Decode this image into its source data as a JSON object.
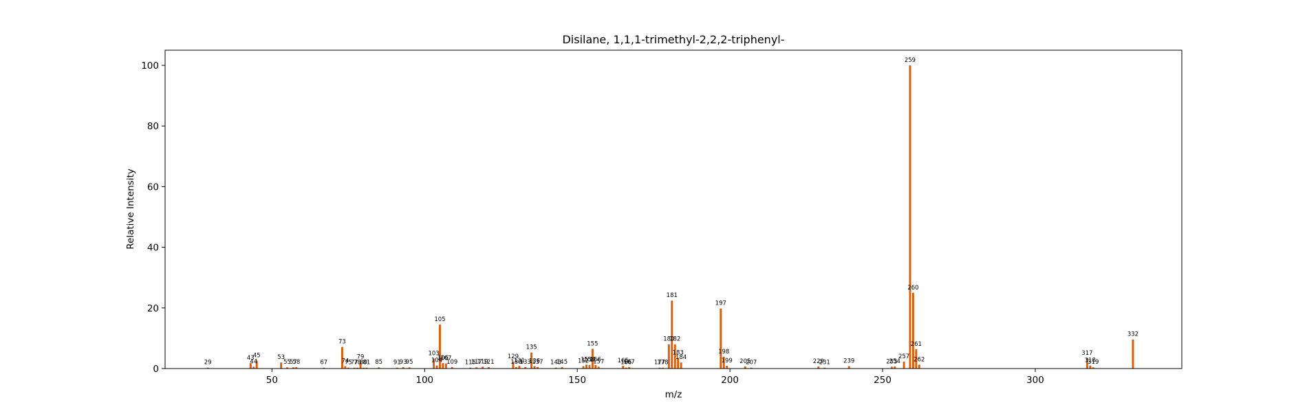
{
  "chart_data": {
    "type": "bar",
    "title": "Disilane, 1,1,1-trimethyl-2,2,2-triphenyl-",
    "xlabel": "m/z",
    "ylabel": "Relative Intensity",
    "xlim": [
      15,
      348
    ],
    "ylim": [
      0,
      105
    ],
    "xticks": [
      50,
      100,
      150,
      200,
      250,
      300
    ],
    "yticks": [
      0,
      20,
      40,
      60,
      80,
      100
    ],
    "grid": false,
    "legend": "none",
    "bar_color": "#d95f0e",
    "peaks": [
      {
        "x": 29,
        "y": 0.3,
        "label": "29"
      },
      {
        "x": 43,
        "y": 1.8,
        "label": "43"
      },
      {
        "x": 44,
        "y": 0.6,
        "label": "44"
      },
      {
        "x": 45,
        "y": 2.6,
        "label": "45"
      },
      {
        "x": 53,
        "y": 2.0,
        "label": "53"
      },
      {
        "x": 55,
        "y": 0.4,
        "label": "55"
      },
      {
        "x": 57,
        "y": 0.4,
        "label": "57"
      },
      {
        "x": 58,
        "y": 0.5,
        "label": "58"
      },
      {
        "x": 67,
        "y": 0.3,
        "label": "67"
      },
      {
        "x": 73,
        "y": 7.1,
        "label": "73"
      },
      {
        "x": 74,
        "y": 0.8,
        "label": "74"
      },
      {
        "x": 75,
        "y": 0.3,
        "label": "75"
      },
      {
        "x": 77,
        "y": 0.3,
        "label": "77"
      },
      {
        "x": 78,
        "y": 0.3,
        "label": "78"
      },
      {
        "x": 79,
        "y": 2.2,
        "label": "79"
      },
      {
        "x": 80,
        "y": 0.3,
        "label": "80"
      },
      {
        "x": 81,
        "y": 0.3,
        "label": "81"
      },
      {
        "x": 85,
        "y": 0.4,
        "label": "85"
      },
      {
        "x": 91,
        "y": 0.3,
        "label": "91"
      },
      {
        "x": 93,
        "y": 0.5,
        "label": "93"
      },
      {
        "x": 95,
        "y": 0.4,
        "label": "95"
      },
      {
        "x": 103,
        "y": 3.3,
        "label": "103"
      },
      {
        "x": 104,
        "y": 1.0,
        "label": "104"
      },
      {
        "x": 105,
        "y": 14.5,
        "label": "105"
      },
      {
        "x": 106,
        "y": 1.8,
        "label": "106"
      },
      {
        "x": 107,
        "y": 1.7,
        "label": "107"
      },
      {
        "x": 109,
        "y": 0.5,
        "label": "109"
      },
      {
        "x": 115,
        "y": 0.3,
        "label": "115"
      },
      {
        "x": 117,
        "y": 0.4,
        "label": "117"
      },
      {
        "x": 119,
        "y": 0.6,
        "label": "119"
      },
      {
        "x": 121,
        "y": 0.5,
        "label": "121"
      },
      {
        "x": 129,
        "y": 2.3,
        "label": "129"
      },
      {
        "x": 130,
        "y": 0.5,
        "label": "130"
      },
      {
        "x": 131,
        "y": 0.9,
        "label": "131"
      },
      {
        "x": 133,
        "y": 0.5,
        "label": "133"
      },
      {
        "x": 135,
        "y": 5.3,
        "label": "135"
      },
      {
        "x": 136,
        "y": 0.8,
        "label": "136"
      },
      {
        "x": 137,
        "y": 0.5,
        "label": "137"
      },
      {
        "x": 143,
        "y": 0.3,
        "label": "143"
      },
      {
        "x": 145,
        "y": 0.5,
        "label": "145"
      },
      {
        "x": 152,
        "y": 0.8,
        "label": "152"
      },
      {
        "x": 153,
        "y": 1.3,
        "label": "153"
      },
      {
        "x": 154,
        "y": 1.2,
        "label": "154"
      },
      {
        "x": 155,
        "y": 6.5,
        "label": "155"
      },
      {
        "x": 156,
        "y": 1.2,
        "label": "156"
      },
      {
        "x": 157,
        "y": 0.6,
        "label": "157"
      },
      {
        "x": 165,
        "y": 0.9,
        "label": "165"
      },
      {
        "x": 166,
        "y": 0.3,
        "label": "166"
      },
      {
        "x": 167,
        "y": 0.5,
        "label": "167"
      },
      {
        "x": 177,
        "y": 0.3,
        "label": "177"
      },
      {
        "x": 178,
        "y": 0.3,
        "label": "178"
      },
      {
        "x": 180,
        "y": 8.0,
        "label": "180"
      },
      {
        "x": 181,
        "y": 22.4,
        "label": "181"
      },
      {
        "x": 182,
        "y": 8.0,
        "label": "182"
      },
      {
        "x": 183,
        "y": 3.5,
        "label": "183"
      },
      {
        "x": 184,
        "y": 2.0,
        "label": "184"
      },
      {
        "x": 197,
        "y": 19.8,
        "label": "197"
      },
      {
        "x": 198,
        "y": 3.9,
        "label": "198"
      },
      {
        "x": 199,
        "y": 0.9,
        "label": "199"
      },
      {
        "x": 205,
        "y": 0.7,
        "label": "205"
      },
      {
        "x": 207,
        "y": 0.3,
        "label": "207"
      },
      {
        "x": 229,
        "y": 0.7,
        "label": "229"
      },
      {
        "x": 231,
        "y": 0.3,
        "label": "231"
      },
      {
        "x": 239,
        "y": 0.8,
        "label": "239"
      },
      {
        "x": 253,
        "y": 0.6,
        "label": "253"
      },
      {
        "x": 254,
        "y": 0.7,
        "label": "254"
      },
      {
        "x": 257,
        "y": 2.3,
        "label": "257"
      },
      {
        "x": 259,
        "y": 100.0,
        "label": "259"
      },
      {
        "x": 260,
        "y": 25.0,
        "label": "260"
      },
      {
        "x": 261,
        "y": 6.4,
        "label": "261"
      },
      {
        "x": 262,
        "y": 1.3,
        "label": "262"
      },
      {
        "x": 317,
        "y": 3.4,
        "label": "317"
      },
      {
        "x": 318,
        "y": 1.0,
        "label": "318"
      },
      {
        "x": 319,
        "y": 0.4,
        "label": "319"
      },
      {
        "x": 332,
        "y": 9.6,
        "label": "332"
      }
    ]
  }
}
